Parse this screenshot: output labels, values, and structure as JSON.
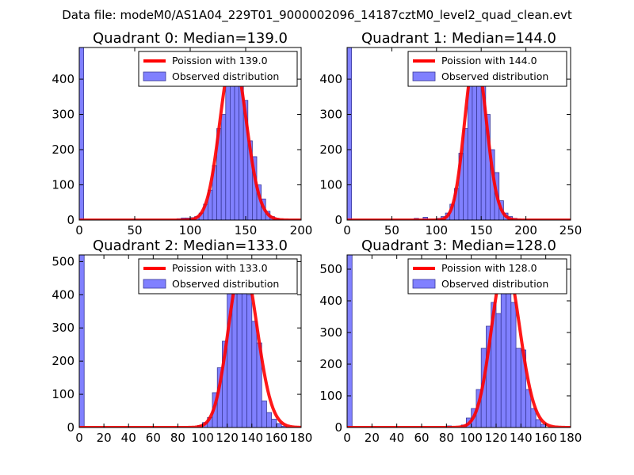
{
  "figure": {
    "suptitle": "Data file: modeM0/AS1A04_229T01_9000002096_14187cztM0_level2_quad_clean.evt"
  },
  "colors": {
    "bar_fill": "#8080ff",
    "bar_edge": "#3a3a9a",
    "fit_line": "#ff0000"
  },
  "chart_data": [
    {
      "type": "bar",
      "title": "Quadrant 0: Median=139.0",
      "xlim": [
        0,
        200
      ],
      "ylim": [
        0,
        490
      ],
      "xticks": [
        "0",
        "50",
        "100",
        "150",
        "200"
      ],
      "yticks": [
        "0",
        "100",
        "200",
        "300",
        "400"
      ],
      "legend_position": "top-right",
      "series": [
        {
          "name": "Poission with 139.0",
          "kind": "line",
          "mu": 139.0,
          "scale": 467
        },
        {
          "name": "Observed distribution",
          "kind": "histogram",
          "bin_width": 4,
          "bins": [
            [
              0,
              490
            ],
            [
              88,
              4
            ],
            [
              92,
              6
            ],
            [
              96,
              6
            ],
            [
              100,
              7
            ],
            [
              104,
              10
            ],
            [
              108,
              20
            ],
            [
              112,
              45
            ],
            [
              116,
              85
            ],
            [
              120,
              155
            ],
            [
              124,
              260
            ],
            [
              128,
              300
            ],
            [
              132,
              380
            ],
            [
              136,
              450
            ],
            [
              140,
              425
            ],
            [
              144,
              420
            ],
            [
              148,
              340
            ],
            [
              152,
              225
            ],
            [
              156,
              180
            ],
            [
              160,
              100
            ],
            [
              164,
              60
            ],
            [
              168,
              25
            ],
            [
              172,
              10
            ],
            [
              176,
              5
            ],
            [
              180,
              2
            ]
          ]
        }
      ]
    },
    {
      "type": "bar",
      "title": "Quadrant 1: Median=144.0",
      "xlim": [
        0,
        250
      ],
      "ylim": [
        0,
        490
      ],
      "xticks": [
        "0",
        "50",
        "100",
        "150",
        "200",
        "250"
      ],
      "yticks": [
        "0",
        "100",
        "200",
        "300",
        "400"
      ],
      "legend_position": "top-right",
      "series": [
        {
          "name": "Poission with 144.0",
          "kind": "line",
          "mu": 144.0,
          "scale": 470
        },
        {
          "name": "Observed distribution",
          "kind": "histogram",
          "bin_width": 5,
          "bins": [
            [
              0,
              490
            ],
            [
              75,
              5
            ],
            [
              85,
              8
            ],
            [
              100,
              5
            ],
            [
              105,
              10
            ],
            [
              110,
              20
            ],
            [
              115,
              45
            ],
            [
              120,
              90
            ],
            [
              125,
              190
            ],
            [
              130,
              260
            ],
            [
              135,
              380
            ],
            [
              140,
              455
            ],
            [
              145,
              460
            ],
            [
              150,
              410
            ],
            [
              155,
              300
            ],
            [
              160,
              200
            ],
            [
              165,
              135
            ],
            [
              170,
              55
            ],
            [
              175,
              20
            ],
            [
              180,
              10
            ],
            [
              185,
              5
            ],
            [
              190,
              2
            ]
          ]
        }
      ]
    },
    {
      "type": "bar",
      "title": "Quadrant 2: Median=133.0",
      "xlim": [
        0,
        180
      ],
      "ylim": [
        0,
        520
      ],
      "xticks": [
        "0",
        "20",
        "40",
        "60",
        "80",
        "100",
        "120",
        "140",
        "160",
        "180"
      ],
      "yticks": [
        "0",
        "100",
        "200",
        "300",
        "400",
        "500"
      ],
      "legend_position": "top-right",
      "series": [
        {
          "name": "Poission with 133.0",
          "kind": "line",
          "mu": 133.0,
          "scale": 500
        },
        {
          "name": "Observed distribution",
          "kind": "histogram",
          "bin_width": 4,
          "bins": [
            [
              0,
              520
            ],
            [
              96,
              6
            ],
            [
              100,
              15
            ],
            [
              104,
              30
            ],
            [
              108,
              105
            ],
            [
              112,
              180
            ],
            [
              116,
              260
            ],
            [
              120,
              405
            ],
            [
              124,
              470
            ],
            [
              128,
              490
            ],
            [
              132,
              415
            ],
            [
              136,
              400
            ],
            [
              140,
              320
            ],
            [
              144,
              255
            ],
            [
              148,
              80
            ],
            [
              152,
              45
            ],
            [
              156,
              25
            ],
            [
              160,
              12
            ],
            [
              164,
              4
            ]
          ]
        }
      ]
    },
    {
      "type": "bar",
      "title": "Quadrant 3: Median=128.0",
      "xlim": [
        0,
        180
      ],
      "ylim": [
        0,
        545
      ],
      "xticks": [
        "0",
        "20",
        "40",
        "60",
        "80",
        "100",
        "120",
        "140",
        "160",
        "180"
      ],
      "yticks": [
        "0",
        "100",
        "200",
        "300",
        "400",
        "500"
      ],
      "legend_position": "top-right",
      "series": [
        {
          "name": "Poission with 128.0",
          "kind": "line",
          "mu": 128.0,
          "scale": 520
        },
        {
          "name": "Observed distribution",
          "kind": "histogram",
          "bin_width": 4,
          "bins": [
            [
              0,
              545
            ],
            [
              80,
              5
            ],
            [
              92,
              8
            ],
            [
              96,
              30
            ],
            [
              100,
              60
            ],
            [
              104,
              120
            ],
            [
              108,
              250
            ],
            [
              112,
              320
            ],
            [
              116,
              395
            ],
            [
              120,
              360
            ],
            [
              124,
              500
            ],
            [
              128,
              480
            ],
            [
              132,
              395
            ],
            [
              136,
              250
            ],
            [
              140,
              245
            ],
            [
              144,
              120
            ],
            [
              148,
              60
            ],
            [
              152,
              25
            ],
            [
              156,
              10
            ]
          ]
        }
      ]
    }
  ]
}
